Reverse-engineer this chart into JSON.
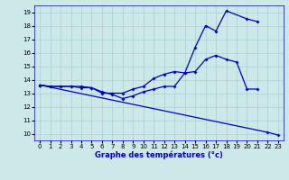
{
  "title": "Graphe des températures (°c)",
  "bg_color": "#cce8e8",
  "grid_color": "#aed4d4",
  "line_color": "#0000cc",
  "xlim": [
    -0.5,
    23.5
  ],
  "ylim": [
    9.5,
    19.5
  ],
  "xticks": [
    0,
    1,
    2,
    3,
    4,
    5,
    6,
    7,
    8,
    9,
    10,
    11,
    12,
    13,
    14,
    15,
    16,
    17,
    18,
    19,
    20,
    21,
    22,
    23
  ],
  "yticks": [
    10,
    11,
    12,
    13,
    14,
    15,
    16,
    17,
    18,
    19
  ],
  "curve1_x": [
    0,
    1,
    2,
    3,
    4,
    5,
    6,
    7,
    8,
    9,
    10,
    11,
    12,
    13,
    14,
    15,
    16,
    17,
    18,
    20,
    21
  ],
  "curve1_y": [
    13.6,
    13.5,
    13.5,
    13.5,
    13.5,
    13.4,
    13.0,
    13.0,
    13.0,
    13.3,
    13.5,
    14.1,
    14.4,
    14.6,
    14.5,
    16.4,
    18.0,
    17.6,
    19.1,
    18.5,
    18.3
  ],
  "curve2_x": [
    0,
    1,
    2,
    3,
    4,
    5,
    6,
    7,
    8,
    9,
    10,
    11,
    12,
    13,
    14,
    15,
    16,
    17,
    18,
    19,
    20,
    21
  ],
  "curve2_y": [
    13.6,
    13.5,
    13.5,
    13.5,
    13.4,
    13.4,
    13.1,
    12.9,
    12.6,
    12.8,
    13.1,
    13.3,
    13.5,
    13.5,
    14.5,
    14.6,
    15.5,
    15.8,
    15.5,
    15.3,
    13.3,
    13.3
  ],
  "curve3_x": [
    0,
    22,
    23
  ],
  "curve3_y": [
    13.6,
    10.1,
    9.9
  ],
  "marker_size": 2.0,
  "lw": 0.9
}
